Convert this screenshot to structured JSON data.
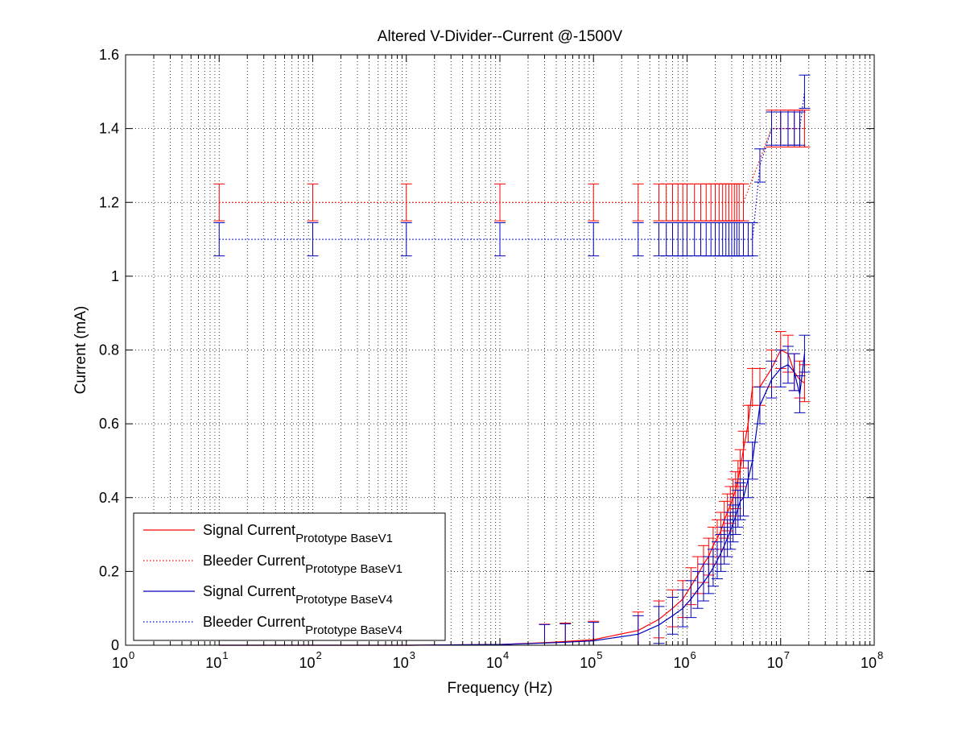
{
  "chart_data": {
    "type": "line",
    "title": "Altered V-Divider--Current @-1500V",
    "xlabel": "Frequency (Hz)",
    "ylabel": "Current (mA)",
    "xscale": "log",
    "xlim": [
      1,
      100000000
    ],
    "ylim": [
      0,
      1.6
    ],
    "grid": true,
    "legend_position": "bottom-left",
    "x_ticks": [
      {
        "value": 1,
        "base": "10",
        "exp": "0"
      },
      {
        "value": 10,
        "base": "10",
        "exp": "1"
      },
      {
        "value": 100,
        "base": "10",
        "exp": "2"
      },
      {
        "value": 1000,
        "base": "10",
        "exp": "3"
      },
      {
        "value": 10000,
        "base": "10",
        "exp": "4"
      },
      {
        "value": 100000,
        "base": "10",
        "exp": "5"
      },
      {
        "value": 1000000,
        "base": "10",
        "exp": "6"
      },
      {
        "value": 10000000,
        "base": "10",
        "exp": "7"
      },
      {
        "value": 100000000,
        "base": "10",
        "exp": "8"
      }
    ],
    "y_ticks": [
      {
        "value": 0,
        "label": "0"
      },
      {
        "value": 0.2,
        "label": "0.2"
      },
      {
        "value": 0.4,
        "label": "0.4"
      },
      {
        "value": 0.6,
        "label": "0.6"
      },
      {
        "value": 0.8,
        "label": "0.8"
      },
      {
        "value": 1,
        "label": "1"
      },
      {
        "value": 1.2,
        "label": "1.2"
      },
      {
        "value": 1.4,
        "label": "1.4"
      },
      {
        "value": 1.6,
        "label": "1.6"
      }
    ],
    "series": [
      {
        "name": "Signal Current",
        "name_sub": "Prototype BaseV1",
        "color": "#ff0000",
        "dash": "solid",
        "error": 0.05,
        "x": [
          10,
          100,
          1000,
          10000,
          30000,
          50000,
          100000,
          300000,
          500000,
          700000,
          900000,
          1100000,
          1300000,
          1500000,
          1700000,
          1900000,
          2100000,
          2300000,
          2500000,
          2700000,
          2900000,
          3100000,
          3300000,
          3500000,
          3700000,
          4000000,
          4500000,
          5000000,
          6000000,
          8000000,
          10000000,
          12000000,
          14000000,
          16000000,
          18000000
        ],
        "y": [
          0,
          0,
          0,
          0.002,
          0.007,
          0.01,
          0.015,
          0.04,
          0.07,
          0.1,
          0.125,
          0.16,
          0.19,
          0.22,
          0.24,
          0.27,
          0.29,
          0.31,
          0.34,
          0.36,
          0.38,
          0.4,
          0.42,
          0.45,
          0.48,
          0.53,
          0.6,
          0.7,
          0.7,
          0.75,
          0.8,
          0.79,
          0.74,
          0.72,
          0.71
        ]
      },
      {
        "name": "Bleeder Current",
        "name_sub": "Prototype BaseV1",
        "color": "#ff0000",
        "dash": "dotted",
        "error": 0.05,
        "x": [
          10,
          100,
          1000,
          10000,
          100000,
          300000,
          500000,
          600000,
          700000,
          800000,
          900000,
          1000000,
          1200000,
          1400000,
          1600000,
          1800000,
          2000000,
          2200000,
          2400000,
          2600000,
          2800000,
          3000000,
          3200000,
          3400000,
          3600000,
          4000000,
          8000000,
          10000000,
          12000000,
          14000000,
          16000000,
          18000000
        ],
        "y": [
          1.2,
          1.2,
          1.2,
          1.2,
          1.2,
          1.2,
          1.2,
          1.2,
          1.2,
          1.2,
          1.2,
          1.2,
          1.2,
          1.2,
          1.2,
          1.2,
          1.2,
          1.2,
          1.2,
          1.2,
          1.2,
          1.2,
          1.2,
          1.2,
          1.2,
          1.2,
          1.4,
          1.4,
          1.4,
          1.4,
          1.4,
          1.4
        ]
      },
      {
        "name": "Signal Current",
        "name_sub": "Prototype BaseV4",
        "color": "#0000bb",
        "dash": "solid",
        "error": 0.05,
        "x": [
          10,
          100,
          1000,
          10000,
          30000,
          50000,
          100000,
          300000,
          500000,
          700000,
          900000,
          1100000,
          1300000,
          1500000,
          1700000,
          1900000,
          2100000,
          2300000,
          2500000,
          2700000,
          2900000,
          3100000,
          3300000,
          3500000,
          3700000,
          4000000,
          4500000,
          5000000,
          6000000,
          8000000,
          10000000,
          12000000,
          14000000,
          16000000,
          18000000
        ],
        "y": [
          0,
          0,
          0,
          0.002,
          0.006,
          0.008,
          0.012,
          0.03,
          0.055,
          0.08,
          0.1,
          0.125,
          0.15,
          0.17,
          0.19,
          0.21,
          0.23,
          0.25,
          0.27,
          0.29,
          0.31,
          0.33,
          0.35,
          0.37,
          0.39,
          0.4,
          0.45,
          0.5,
          0.65,
          0.72,
          0.75,
          0.76,
          0.74,
          0.68,
          0.79
        ]
      },
      {
        "name": "Bleeder Current",
        "name_sub": "Prototype BaseV4",
        "color": "#0000bb",
        "dash": "dotted",
        "error": 0.045,
        "x": [
          10,
          100,
          1000,
          10000,
          100000,
          300000,
          500000,
          600000,
          700000,
          800000,
          900000,
          1000000,
          1200000,
          1400000,
          1600000,
          1800000,
          2000000,
          2200000,
          2400000,
          2600000,
          2800000,
          3000000,
          3200000,
          3400000,
          3600000,
          4000000,
          4500000,
          5000000,
          6000000,
          8000000,
          10000000,
          12000000,
          14000000,
          16000000,
          18000000
        ],
        "y": [
          1.1,
          1.1,
          1.1,
          1.1,
          1.1,
          1.1,
          1.1,
          1.1,
          1.1,
          1.1,
          1.1,
          1.1,
          1.1,
          1.1,
          1.1,
          1.1,
          1.1,
          1.1,
          1.1,
          1.1,
          1.1,
          1.1,
          1.1,
          1.1,
          1.1,
          1.1,
          1.1,
          1.1,
          1.3,
          1.4,
          1.4,
          1.4,
          1.4,
          1.4,
          1.5
        ]
      }
    ]
  }
}
